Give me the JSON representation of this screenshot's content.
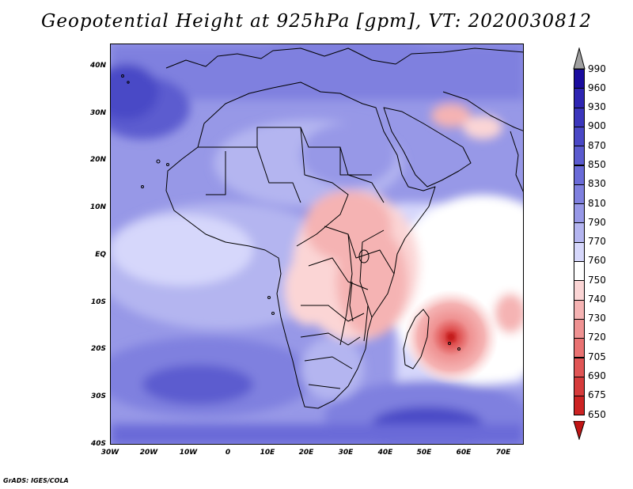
{
  "title": "Geopotential Height at 925hPa [gpm], VT: 2020030812",
  "footer": "GrADS: IGES/COLA",
  "map": {
    "variable": "Geopotential Height",
    "level": "925hPa",
    "units": "gpm",
    "valid_time": "2020030812",
    "lat_labels": [
      "40N",
      "30N",
      "20N",
      "10N",
      "EQ",
      "10S",
      "20S",
      "30S",
      "40S"
    ],
    "lon_labels": [
      "30W",
      "20W",
      "10W",
      "0",
      "10E",
      "20E",
      "30E",
      "40E",
      "50E",
      "60E",
      "70E"
    ],
    "lon_range": [
      -30,
      75
    ],
    "lat_range": [
      -40,
      45
    ]
  },
  "colorbar": {
    "labels": [
      "990",
      "960",
      "930",
      "900",
      "870",
      "850",
      "830",
      "810",
      "790",
      "770",
      "760",
      "750",
      "740",
      "730",
      "720",
      "705",
      "690",
      "675",
      "650"
    ],
    "colors": [
      "#a0a0a0",
      "#1a0c9e",
      "#2e25b2",
      "#3b36bc",
      "#4a48c6",
      "#5b5bcf",
      "#6a6bd8",
      "#7f80df",
      "#9798e7",
      "#b4b5f0",
      "#d6d7fb",
      "#ffffff",
      "#fbd5d5",
      "#f5b3b3",
      "#ef9292",
      "#e97272",
      "#e05555",
      "#d63b3b",
      "#cc2323",
      "#c01515"
    ]
  },
  "colors": {
    "deep_blue": "#3b36bc",
    "mid_blue": "#7f80df",
    "light_blue": "#b4b5f0",
    "pale_blue": "#d6d7fb",
    "neutral": "#ffffff",
    "pale_red": "#f5b3b3",
    "red": "#e05555"
  }
}
